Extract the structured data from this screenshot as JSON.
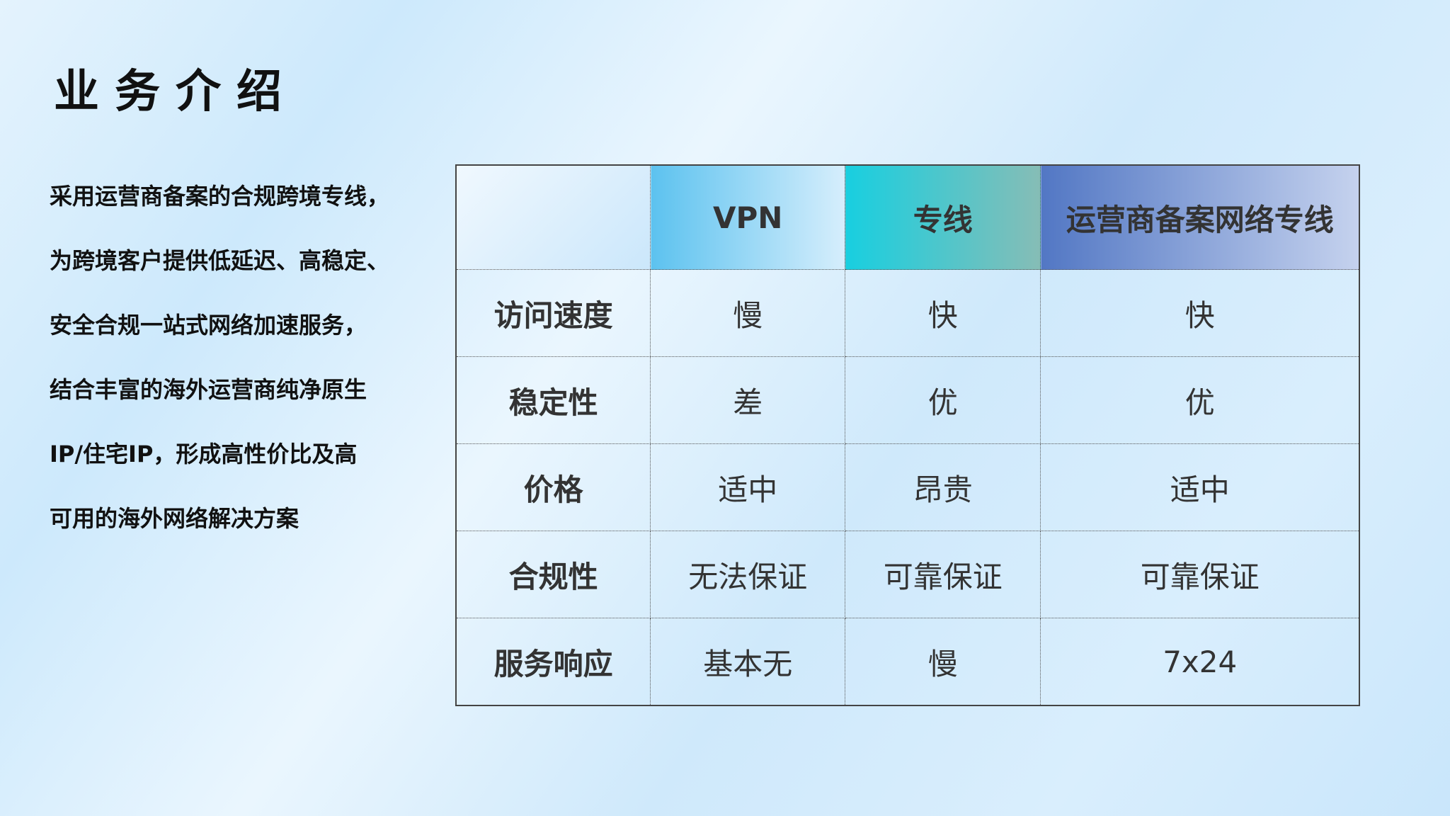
{
  "title": "业务介绍",
  "intro_lines": [
    "采用运营商备案的合规跨境专线，",
    "为跨境客户提供低延迟、高稳定、",
    "安全合规一站式网络加速服务，",
    "结合丰富的海外运营商纯净原生",
    "IP/住宅IP，形成高性价比及高",
    "可用的海外网络解决方案"
  ],
  "table": {
    "headers": [
      "",
      "VPN",
      "专线",
      "运营商备案网络专线"
    ],
    "header_colors": [
      "#5cc2ef",
      "#18cfe0",
      "#5277c4"
    ],
    "rows": [
      [
        "访问速度",
        "慢",
        "快",
        "快"
      ],
      [
        "稳定性",
        "差",
        "优",
        "优"
      ],
      [
        "价格",
        "适中",
        "昂贵",
        "适中"
      ],
      [
        "合规性",
        "无法保证",
        "可靠保证",
        "可靠保证"
      ],
      [
        "服务响应",
        "基本无",
        "慢",
        "7x24"
      ]
    ]
  }
}
